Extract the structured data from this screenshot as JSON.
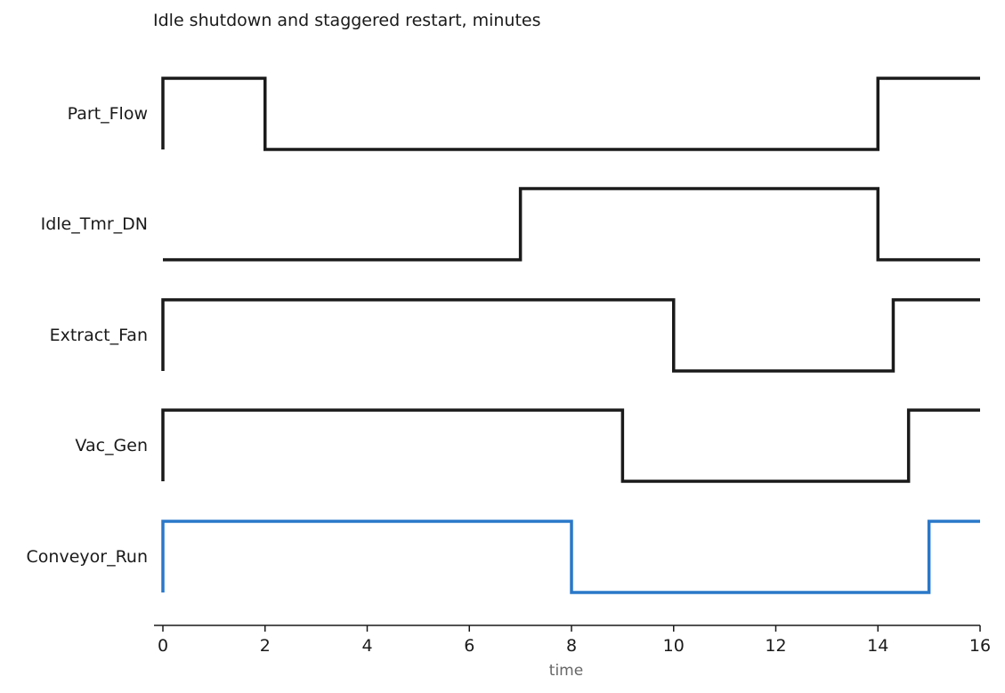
{
  "chart_data": {
    "type": "line",
    "subtype": "timing-diagram",
    "title": "Idle shutdown and staggered restart, minutes",
    "xlabel": "time",
    "xlim": [
      0,
      16
    ],
    "xticks": [
      0,
      2,
      4,
      6,
      8,
      10,
      12,
      14,
      16
    ],
    "grid": false,
    "legend": "none",
    "series": [
      {
        "name": "Part_Flow",
        "color": "#1a1a1a",
        "steps": [
          [
            0,
            1
          ],
          [
            2,
            0
          ],
          [
            14,
            1
          ],
          [
            16,
            1
          ]
        ]
      },
      {
        "name": "Idle_Tmr_DN",
        "color": "#1a1a1a",
        "steps": [
          [
            0,
            0
          ],
          [
            7,
            1
          ],
          [
            14,
            0
          ],
          [
            16,
            0
          ]
        ]
      },
      {
        "name": "Extract_Fan",
        "color": "#1a1a1a",
        "steps": [
          [
            0,
            1
          ],
          [
            10,
            0
          ],
          [
            14.3,
            1
          ],
          [
            16,
            1
          ]
        ]
      },
      {
        "name": "Vac_Gen",
        "color": "#1a1a1a",
        "steps": [
          [
            0,
            1
          ],
          [
            9,
            0
          ],
          [
            14.6,
            1
          ],
          [
            16,
            1
          ]
        ]
      },
      {
        "name": "Conveyor_Run",
        "color": "#2a78c9",
        "steps": [
          [
            0,
            1
          ],
          [
            8,
            0
          ],
          [
            15,
            1
          ],
          [
            16,
            1
          ]
        ]
      }
    ]
  }
}
